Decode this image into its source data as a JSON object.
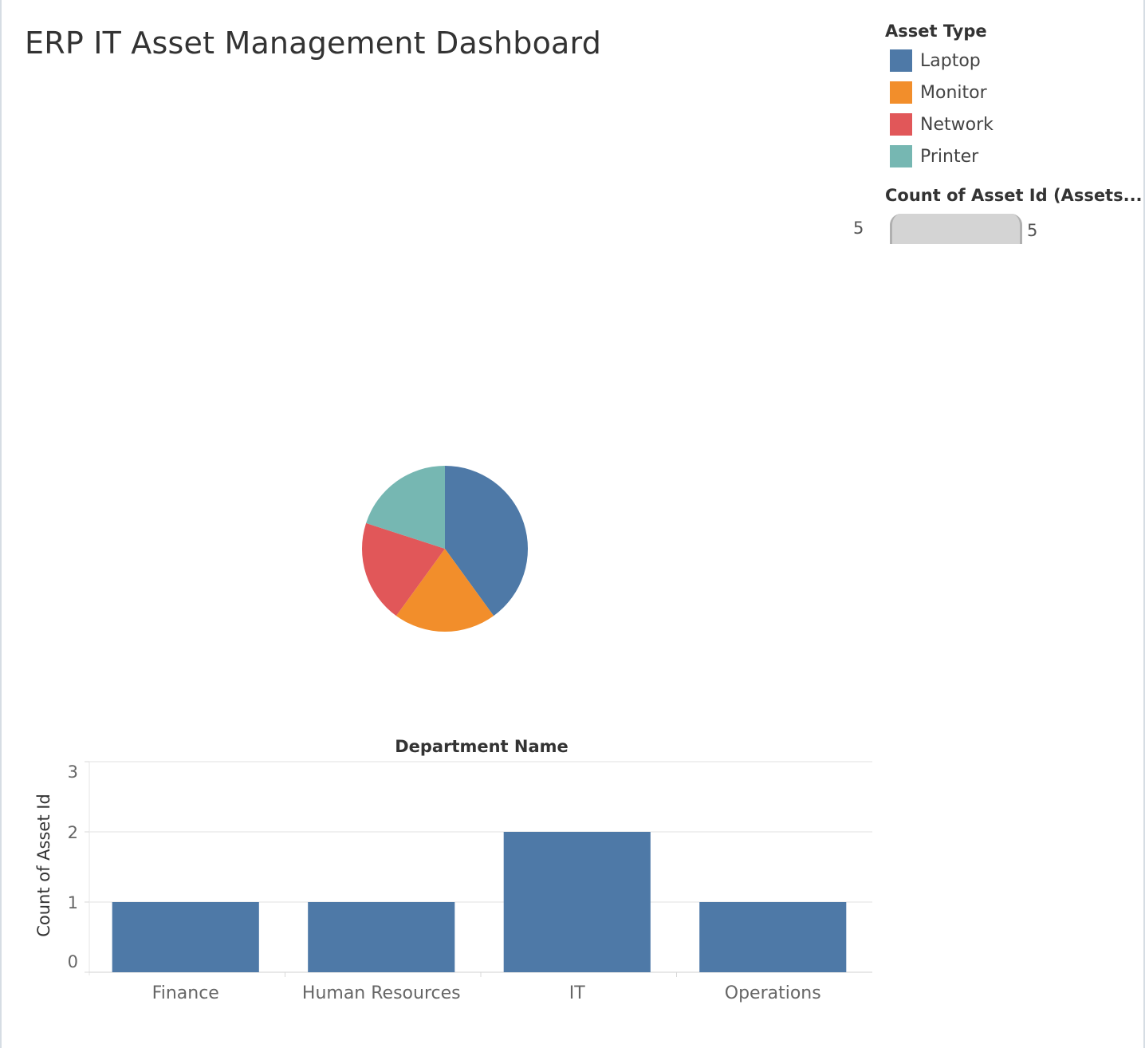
{
  "dashboard": {
    "title": "ERP IT Asset Management Dashboard"
  },
  "legend": {
    "title": "Asset Type",
    "items": [
      {
        "label": "Laptop",
        "color": "#4e79a7"
      },
      {
        "label": "Monitor",
        "color": "#f28e2b"
      },
      {
        "label": "Network",
        "color": "#e15759"
      },
      {
        "label": "Printer",
        "color": "#76b7b2"
      }
    ]
  },
  "size_legend": {
    "title": "Count of Asset Id (Assets...",
    "min_label": "5",
    "max_label": "5"
  },
  "chart_data": [
    {
      "type": "pie",
      "categories": [
        "Laptop",
        "Monitor",
        "Network",
        "Printer"
      ],
      "values": [
        2,
        1,
        1,
        1
      ],
      "colors": [
        "#4e79a7",
        "#f28e2b",
        "#e15759",
        "#76b7b2"
      ]
    },
    {
      "type": "bar",
      "title": "Department Name",
      "categories": [
        "Finance",
        "Human Resources",
        "IT",
        "Operations"
      ],
      "values": [
        1,
        1,
        2,
        1
      ],
      "ylabel": "Count of Asset Id",
      "ylim": [
        0,
        3
      ],
      "yticks": [
        "0",
        "1",
        "2",
        "3"
      ],
      "grid": true,
      "color": "#4e79a7"
    }
  ]
}
